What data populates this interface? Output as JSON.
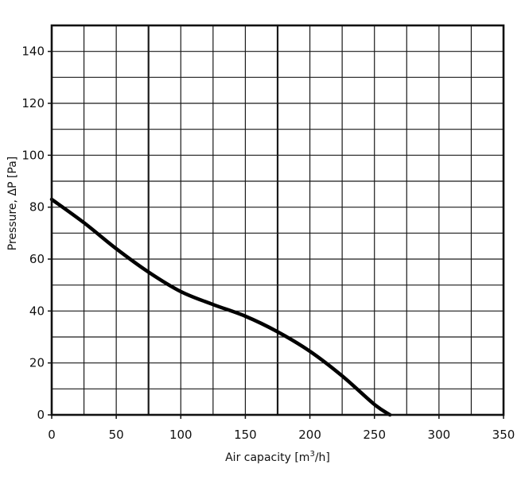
{
  "chart_data": {
    "type": "line",
    "title": "",
    "xlabel_main": "Air capacity [m",
    "xlabel_sup": "3",
    "xlabel_end": "/h]",
    "ylabel": "Pressure, ΔP [Pa]",
    "xlim": [
      0,
      350
    ],
    "ylim": [
      0,
      150
    ],
    "x_ticks": [
      0,
      50,
      100,
      150,
      200,
      250,
      300,
      350
    ],
    "y_ticks": [
      0,
      20,
      40,
      60,
      80,
      100,
      120,
      140
    ],
    "x_grid_step": 25,
    "y_grid_step": 10,
    "x_major_grid": [
      75,
      175
    ],
    "grid": true,
    "series": [
      {
        "x": [
          0,
          25,
          50,
          75,
          100,
          125,
          150,
          175,
          200,
          225,
          250,
          262
        ],
        "y": [
          83,
          74,
          64,
          55,
          47.5,
          42.5,
          38,
          32,
          24.5,
          15,
          4,
          0
        ]
      }
    ]
  }
}
